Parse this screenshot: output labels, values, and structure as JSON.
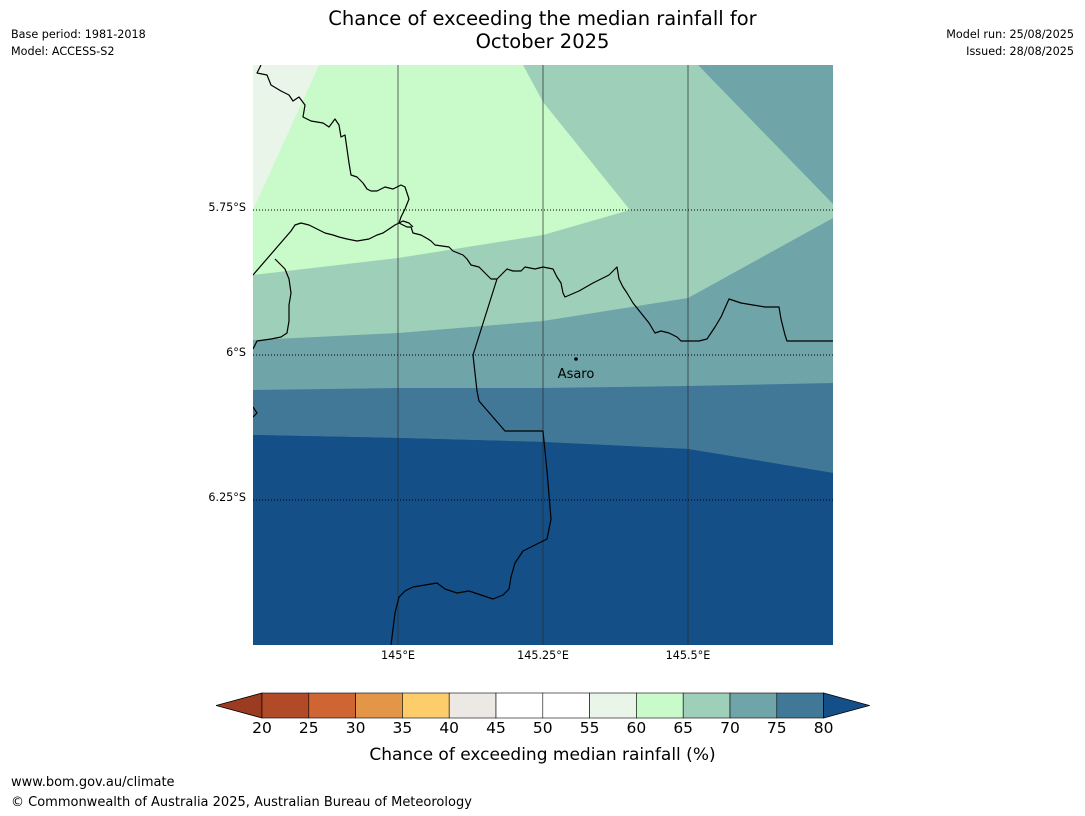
{
  "title": {
    "line1": "Chance of exceeding the median rainfall for",
    "line2": "October 2025"
  },
  "meta": {
    "base_period": "Base period: 1981-2018",
    "model": "Model: ACCESS-S2",
    "model_run": "Model run: 25/08/2025",
    "issued": "Issued: 28/08/2025"
  },
  "map": {
    "lat_labels": [
      "5.75°S",
      "6°S",
      "6.25°S"
    ],
    "lon_labels": [
      "145°E",
      "145.25°E",
      "145.5°E"
    ],
    "place": {
      "name": "Asaro",
      "lon": 145.28,
      "lat": -6.01
    },
    "extent": {
      "lon_min": 144.75,
      "lon_max": 145.75,
      "lat_min": -6.5,
      "lat_max": -5.5
    }
  },
  "colorbar": {
    "ticks": [
      "20",
      "25",
      "30",
      "35",
      "40",
      "45",
      "50",
      "55",
      "60",
      "65",
      "70",
      "75",
      "80"
    ],
    "colors": [
      "#b04a27",
      "#cf6532",
      "#e49648",
      "#fdcc6b",
      "#ece8e4",
      "#ffffff",
      "#ffffff",
      "#e9f5e9",
      "#c9fac9",
      "#9ed0b9",
      "#6fa4a8",
      "#417898",
      "#154f88"
    ],
    "under_color": "#9a3b22",
    "over_color": "#154f88",
    "label": "Chance of exceeding median rainfall (%)"
  },
  "footer": {
    "url": "www.bom.gov.au/climate",
    "copyright": "© Commonwealth of Australia 2025, Australian Bureau of Meteorology"
  }
}
